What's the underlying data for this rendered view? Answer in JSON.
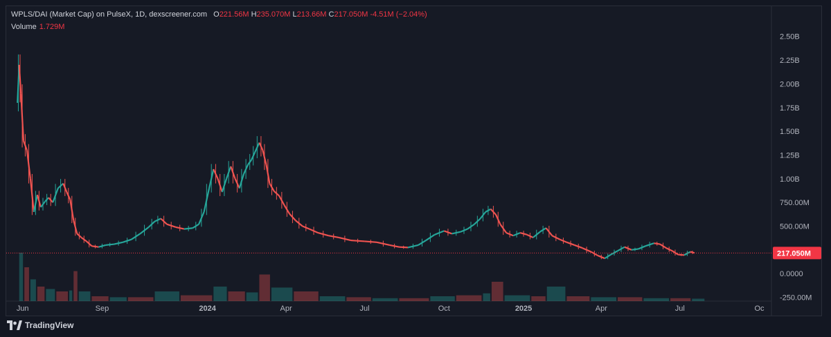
{
  "header": {
    "symbol": "WPLS/DAI (Market Cap) on PulseX, 1D, dexscreener.com",
    "o_label": "O",
    "o_value": "221.56M",
    "h_label": "H",
    "h_value": "235.070M",
    "l_label": "L",
    "l_value": "213.66M",
    "c_label": "C",
    "c_value": "217.050M",
    "change": "-4.51M (−2.04%)",
    "volume_label": "Volume",
    "volume_value": "1.729M"
  },
  "footer": {
    "brand": "TradingView",
    "logo_icon": "tradingview-logo-icon"
  },
  "colors": {
    "up": "#26a69a",
    "down": "#ef5350",
    "background": "#161a25",
    "last_price": "#f23645",
    "text": "#d1d4dc"
  },
  "chart_data": {
    "type": "candlestick",
    "y_ticks": [
      "2.50B",
      "2.25B",
      "2.00B",
      "1.75B",
      "1.50B",
      "1.25B",
      "1.00B",
      "750.00M",
      "500.00M",
      "0.0000",
      "-250.00M"
    ],
    "y_tick_values": [
      2500,
      2250,
      2000,
      1750,
      1500,
      1250,
      1000,
      750,
      500,
      0,
      -250
    ],
    "x_ticks": [
      "Jun",
      "Sep",
      "2024",
      "Apr",
      "Jul",
      "Oct",
      "2025",
      "Apr",
      "Jul",
      "Oc"
    ],
    "x_tick_dates": [
      "2023-06-01",
      "2023-09-01",
      "2024-01-01",
      "2024-04-01",
      "2024-07-01",
      "2024-10-01",
      "2025-01-01",
      "2025-04-01",
      "2025-07-01",
      "2025-10-01"
    ],
    "bold_x_ticks": [
      "2024",
      "2025"
    ],
    "y_unit": "M (market cap)",
    "last_price_label": "217.050M",
    "last_price_value": 217.05,
    "ylim": [
      -290,
      2600
    ],
    "date_range": [
      "2023-05-13",
      "2025-10-15"
    ],
    "series": [
      {
        "name": "Market Cap",
        "kind": "close_path",
        "points": [
          [
            "2023-05-26",
            1800
          ],
          [
            "2023-05-28",
            2200
          ],
          [
            "2023-05-30",
            1900
          ],
          [
            "2023-06-02",
            1400
          ],
          [
            "2023-06-06",
            1300
          ],
          [
            "2023-06-10",
            1000
          ],
          [
            "2023-06-14",
            650
          ],
          [
            "2023-06-18",
            830
          ],
          [
            "2023-06-22",
            700
          ],
          [
            "2023-06-27",
            760
          ],
          [
            "2023-07-01",
            800
          ],
          [
            "2023-07-06",
            750
          ],
          [
            "2023-07-12",
            900
          ],
          [
            "2023-07-18",
            950
          ],
          [
            "2023-07-22",
            860
          ],
          [
            "2023-07-26",
            780
          ],
          [
            "2023-07-30",
            560
          ],
          [
            "2023-08-03",
            420
          ],
          [
            "2023-08-08",
            380
          ],
          [
            "2023-08-14",
            340
          ],
          [
            "2023-08-20",
            290
          ],
          [
            "2023-08-28",
            280
          ],
          [
            "2023-09-05",
            300
          ],
          [
            "2023-09-15",
            310
          ],
          [
            "2023-09-25",
            330
          ],
          [
            "2023-10-05",
            360
          ],
          [
            "2023-10-15",
            420
          ],
          [
            "2023-10-25",
            490
          ],
          [
            "2023-11-01",
            550
          ],
          [
            "2023-11-08",
            580
          ],
          [
            "2023-11-15",
            520
          ],
          [
            "2023-11-25",
            490
          ],
          [
            "2023-12-05",
            470
          ],
          [
            "2023-12-15",
            480
          ],
          [
            "2023-12-22",
            520
          ],
          [
            "2023-12-28",
            650
          ],
          [
            "2024-01-03",
            900
          ],
          [
            "2024-01-08",
            1100
          ],
          [
            "2024-01-13",
            1000
          ],
          [
            "2024-01-18",
            860
          ],
          [
            "2024-01-23",
            1000
          ],
          [
            "2024-01-28",
            1130
          ],
          [
            "2024-02-02",
            1000
          ],
          [
            "2024-02-07",
            900
          ],
          [
            "2024-02-12",
            1050
          ],
          [
            "2024-02-17",
            1150
          ],
          [
            "2024-02-21",
            1200
          ],
          [
            "2024-02-25",
            1280
          ],
          [
            "2024-03-01",
            1380
          ],
          [
            "2024-03-05",
            1300
          ],
          [
            "2024-03-09",
            1150
          ],
          [
            "2024-03-13",
            950
          ],
          [
            "2024-03-18",
            870
          ],
          [
            "2024-03-24",
            820
          ],
          [
            "2024-03-30",
            720
          ],
          [
            "2024-04-05",
            630
          ],
          [
            "2024-04-12",
            560
          ],
          [
            "2024-04-20",
            500
          ],
          [
            "2024-04-28",
            470
          ],
          [
            "2024-05-08",
            430
          ],
          [
            "2024-05-20",
            400
          ],
          [
            "2024-06-01",
            380
          ],
          [
            "2024-06-15",
            350
          ],
          [
            "2024-07-01",
            340
          ],
          [
            "2024-07-15",
            330
          ],
          [
            "2024-07-30",
            300
          ],
          [
            "2024-08-10",
            280
          ],
          [
            "2024-08-20",
            275
          ],
          [
            "2024-09-01",
            300
          ],
          [
            "2024-09-10",
            350
          ],
          [
            "2024-09-20",
            410
          ],
          [
            "2024-10-01",
            450
          ],
          [
            "2024-10-10",
            420
          ],
          [
            "2024-10-20",
            440
          ],
          [
            "2024-10-28",
            470
          ],
          [
            "2024-11-05",
            520
          ],
          [
            "2024-11-12",
            580
          ],
          [
            "2024-11-18",
            650
          ],
          [
            "2024-11-24",
            680
          ],
          [
            "2024-11-30",
            620
          ],
          [
            "2024-12-05",
            520
          ],
          [
            "2024-12-12",
            430
          ],
          [
            "2024-12-20",
            400
          ],
          [
            "2024-12-28",
            430
          ],
          [
            "2025-01-05",
            410
          ],
          [
            "2025-01-12",
            380
          ],
          [
            "2025-01-20",
            440
          ],
          [
            "2025-01-27",
            480
          ],
          [
            "2025-02-03",
            400
          ],
          [
            "2025-02-12",
            360
          ],
          [
            "2025-02-20",
            330
          ],
          [
            "2025-03-01",
            300
          ],
          [
            "2025-03-10",
            270
          ],
          [
            "2025-03-20",
            230
          ],
          [
            "2025-03-28",
            190
          ],
          [
            "2025-04-05",
            160
          ],
          [
            "2025-04-12",
            200
          ],
          [
            "2025-04-20",
            240
          ],
          [
            "2025-04-28",
            280
          ],
          [
            "2025-05-06",
            250
          ],
          [
            "2025-05-14",
            260
          ],
          [
            "2025-05-22",
            290
          ],
          [
            "2025-06-01",
            320
          ],
          [
            "2025-06-08",
            310
          ],
          [
            "2025-06-15",
            270
          ],
          [
            "2025-06-22",
            240
          ],
          [
            "2025-06-29",
            200
          ],
          [
            "2025-07-06",
            195
          ],
          [
            "2025-07-13",
            230
          ],
          [
            "2025-07-18",
            217
          ]
        ]
      },
      {
        "name": "Volume",
        "kind": "volume_bars",
        "points": [
          [
            "2023-05-28",
            1.0
          ],
          [
            "2023-06-03",
            0.7
          ],
          [
            "2023-06-10",
            0.45
          ],
          [
            "2023-06-18",
            0.3
          ],
          [
            "2023-06-28",
            0.25
          ],
          [
            "2023-07-10",
            0.2
          ],
          [
            "2023-07-25",
            0.22
          ],
          [
            "2023-07-30",
            0.62
          ],
          [
            "2023-08-05",
            0.2
          ],
          [
            "2023-08-20",
            0.1
          ],
          [
            "2023-09-10",
            0.08
          ],
          [
            "2023-10-01",
            0.08
          ],
          [
            "2023-11-01",
            0.2
          ],
          [
            "2023-12-01",
            0.12
          ],
          [
            "2024-01-08",
            0.3
          ],
          [
            "2024-01-25",
            0.2
          ],
          [
            "2024-02-15",
            0.18
          ],
          [
            "2024-03-01",
            0.55
          ],
          [
            "2024-03-15",
            0.28
          ],
          [
            "2024-04-10",
            0.2
          ],
          [
            "2024-05-10",
            0.1
          ],
          [
            "2024-06-10",
            0.08
          ],
          [
            "2024-07-10",
            0.06
          ],
          [
            "2024-08-10",
            0.06
          ],
          [
            "2024-09-15",
            0.1
          ],
          [
            "2024-10-15",
            0.12
          ],
          [
            "2024-11-15",
            0.16
          ],
          [
            "2024-11-25",
            0.4
          ],
          [
            "2024-12-10",
            0.12
          ],
          [
            "2025-01-10",
            0.1
          ],
          [
            "2025-01-28",
            0.3
          ],
          [
            "2025-02-20",
            0.1
          ],
          [
            "2025-03-20",
            0.08
          ],
          [
            "2025-04-20",
            0.08
          ],
          [
            "2025-05-20",
            0.06
          ],
          [
            "2025-06-20",
            0.06
          ],
          [
            "2025-07-15",
            0.05
          ]
        ]
      }
    ]
  }
}
